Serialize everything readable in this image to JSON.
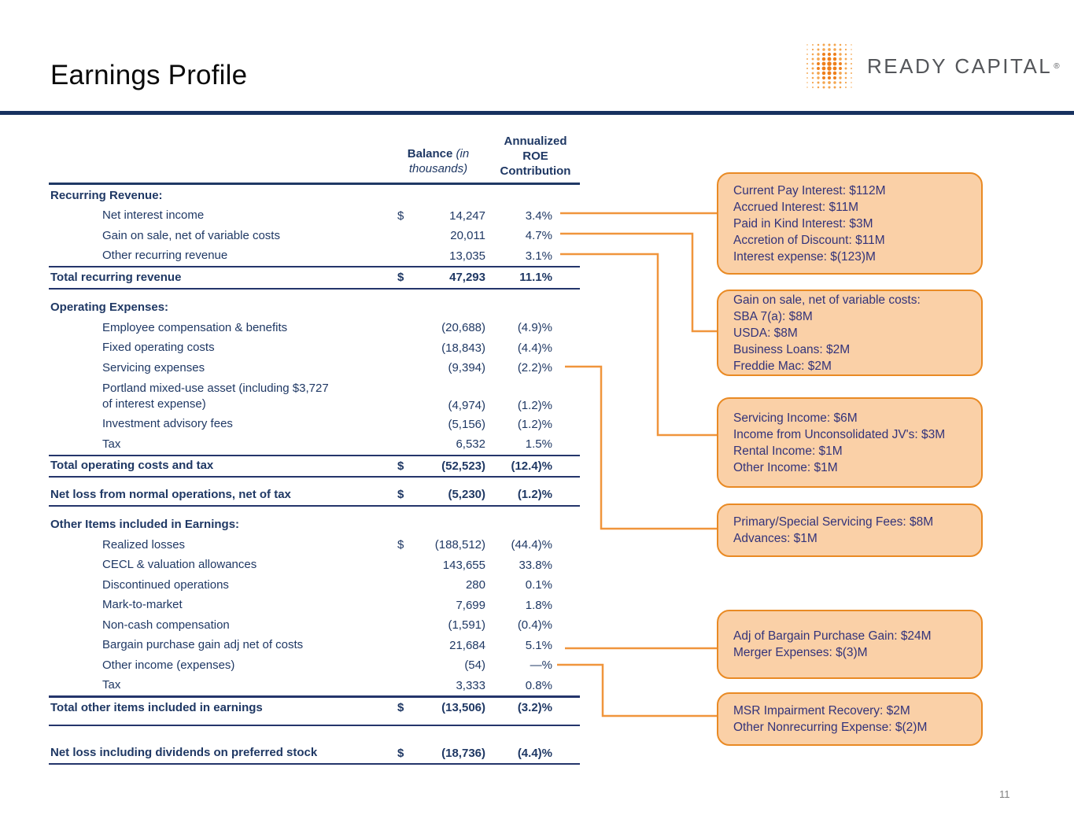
{
  "page": {
    "title": "Earnings Profile",
    "page_number": "11"
  },
  "logo": {
    "name": "READY CAPITAL",
    "registered": "®"
  },
  "colors": {
    "navy_text": "#1f3864",
    "title_rule": "#17315f",
    "callout_fill": "#fad0a7",
    "callout_border": "#e98a24",
    "callout_text": "#33337a",
    "connector_orange": "#f0953c",
    "logo_gray": "#54565a",
    "logo_orange": "#ee7f1b"
  },
  "table": {
    "header": {
      "balance_bold": "Balance",
      "balance_italic": " (in thousands)",
      "roe_lines": [
        "Annualized",
        "ROE",
        "Contribution"
      ]
    },
    "rows": [
      {
        "type": "section",
        "label": "Recurring Revenue:"
      },
      {
        "type": "item",
        "label": "Net interest income",
        "dollar": "$",
        "balance": "14,247",
        "roe": "3.4%"
      },
      {
        "type": "item",
        "label": "Gain on sale, net of variable costs",
        "dollar": "",
        "balance": "20,011",
        "roe": "4.7%"
      },
      {
        "type": "item",
        "label": "Other recurring revenue",
        "dollar": "",
        "balance": "13,035",
        "roe": "3.1%"
      },
      {
        "type": "rule"
      },
      {
        "type": "total",
        "label": "Total recurring revenue",
        "dollar": "$",
        "balance": "47,293",
        "roe": "11.1%"
      },
      {
        "type": "rule"
      },
      {
        "type": "gap",
        "h": 11
      },
      {
        "type": "section",
        "label": "Operating Expenses:"
      },
      {
        "type": "item",
        "label": "Employee compensation & benefits",
        "dollar": "",
        "balance": "(20,688)",
        "roe": "(4.9)%"
      },
      {
        "type": "item",
        "label": "Fixed operating costs",
        "dollar": "",
        "balance": "(18,843)",
        "roe": "(4.4)%"
      },
      {
        "type": "item",
        "label": "Servicing expenses",
        "dollar": "",
        "balance": "(9,394)",
        "roe": "(2.2)%"
      },
      {
        "type": "item2",
        "label": "Portland mixed-use asset (including $3,727",
        "label2": "of interest expense)",
        "dollar": "",
        "balance": "(4,974)",
        "roe": "(1.2)%"
      },
      {
        "type": "item",
        "label": "Investment advisory fees",
        "dollar": "",
        "balance": "(5,156)",
        "roe": "(1.2)%"
      },
      {
        "type": "item",
        "label": "Tax",
        "dollar": "",
        "balance": "6,532",
        "roe": "1.5%"
      },
      {
        "type": "rule"
      },
      {
        "type": "total",
        "label": "Total operating costs and tax",
        "dollar": "$",
        "balance": "(52,523)",
        "roe": "(12.4)%"
      },
      {
        "type": "rule"
      },
      {
        "type": "gap",
        "h": 9
      },
      {
        "type": "total",
        "label": "Net loss from normal operations, net of tax",
        "dollar": "$",
        "balance": "(5,230)",
        "roe": "(1.2)%"
      },
      {
        "type": "rule"
      },
      {
        "type": "gap",
        "h": 11
      },
      {
        "type": "section",
        "label": "Other Items included in Earnings:"
      },
      {
        "type": "item",
        "label": "Realized losses",
        "dollar": "$",
        "balance": "(188,512)",
        "roe": "(44.4)%"
      },
      {
        "type": "item",
        "label": "CECL & valuation allowances",
        "dollar": "",
        "balance": "143,655",
        "roe": "33.8%"
      },
      {
        "type": "item",
        "label": "Discontinued operations",
        "dollar": "",
        "balance": "280",
        "roe": "0.1%"
      },
      {
        "type": "item",
        "label": "Mark-to-market",
        "dollar": "",
        "balance": "7,699",
        "roe": "1.8%"
      },
      {
        "type": "item",
        "label": "Non-cash compensation",
        "dollar": "",
        "balance": "(1,591)",
        "roe": "(0.4)%"
      },
      {
        "type": "item",
        "label": "Bargain purchase gain adj net of costs",
        "dollar": "",
        "balance": "21,684",
        "roe": "5.1%"
      },
      {
        "type": "item",
        "label": "Other income (expenses)",
        "dollar": "",
        "balance": "(54)",
        "roe": "—%"
      },
      {
        "type": "item",
        "label": "Tax",
        "dollar": "",
        "balance": "3,333",
        "roe": "0.8%"
      },
      {
        "type": "rule",
        "thick": true
      },
      {
        "type": "total",
        "label": "Total other items included in earnings",
        "dollar": "$",
        "balance": "(13,506)",
        "roe": "(3.2)%"
      },
      {
        "type": "gap",
        "h": 8
      },
      {
        "type": "rule"
      },
      {
        "type": "gap",
        "h": 22
      },
      {
        "type": "total",
        "label": "Net loss including dividends on preferred stock",
        "dollar": "$",
        "balance": "(18,736)",
        "roe": "(4.4)%"
      },
      {
        "type": "rule"
      }
    ]
  },
  "callouts": [
    {
      "lines": [
        "Current Pay Interest: $112M",
        "Accrued Interest: $11M",
        "Paid in Kind Interest: $3M",
        "Accretion of Discount: $11M",
        "Interest expense: $(123)M"
      ]
    },
    {
      "lines": [
        "Gain on sale, net of variable costs:",
        "SBA 7(a): $8M",
        "USDA: $8M",
        "Business Loans: $2M",
        "Freddie Mac: $2M"
      ]
    },
    {
      "lines": [
        "Servicing Income: $6M",
        "Income from Unconsolidated JV's: $3M",
        "Rental Income: $1M",
        "Other Income: $1M"
      ]
    },
    {
      "lines": [
        "Primary/Special Servicing Fees: $8M",
        "Advances: $1M"
      ]
    },
    {
      "lines": [
        "Adj of Bargain Purchase Gain: $24M",
        "Merger Expenses: $(3)M"
      ]
    },
    {
      "lines": [
        "MSR Impairment Recovery: $2M",
        "Other Nonrecurring Expense: $(2)M"
      ]
    }
  ]
}
